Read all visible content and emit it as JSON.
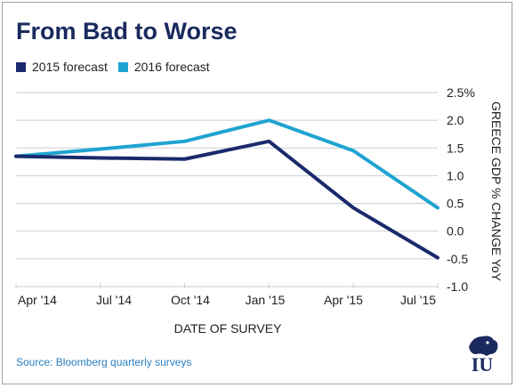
{
  "title": "From Bad to Worse",
  "source": "Source: Bloomberg quarterly surveys",
  "colors": {
    "series_2015": "#1a2a6c",
    "series_2016": "#1fa3d1",
    "title": "#1a2a5e",
    "grid": "#c9ced6"
  },
  "logo": {
    "icon": "lion-shield-logo",
    "text": "IU"
  },
  "chart_data": {
    "type": "line",
    "title": "From Bad to Worse",
    "xlabel": "DATE OF SURVEY",
    "ylabel": "GREECE GDP % CHANGE YoY",
    "categories": [
      "Apr '14",
      "Jul '14",
      "Oct '14",
      "Jan '15",
      "Apr '15",
      "Jul '15"
    ],
    "ylim": [
      -1.0,
      2.5
    ],
    "yticks": [
      "2.5%",
      "2.0",
      "1.5",
      "1.0",
      "0.5",
      "0.0",
      "-0.5",
      "-1.0"
    ],
    "ytick_values": [
      2.5,
      2.0,
      1.5,
      1.0,
      0.5,
      0.0,
      -0.5,
      -1.0
    ],
    "grid": "horizontal",
    "legend": "top-left",
    "series": [
      {
        "name": "2015 forecast",
        "values": [
          1.35,
          1.32,
          1.3,
          1.62,
          0.42,
          -0.48
        ]
      },
      {
        "name": "2016 forecast",
        "values": [
          1.35,
          1.48,
          1.62,
          2.0,
          1.45,
          0.42
        ]
      }
    ]
  }
}
